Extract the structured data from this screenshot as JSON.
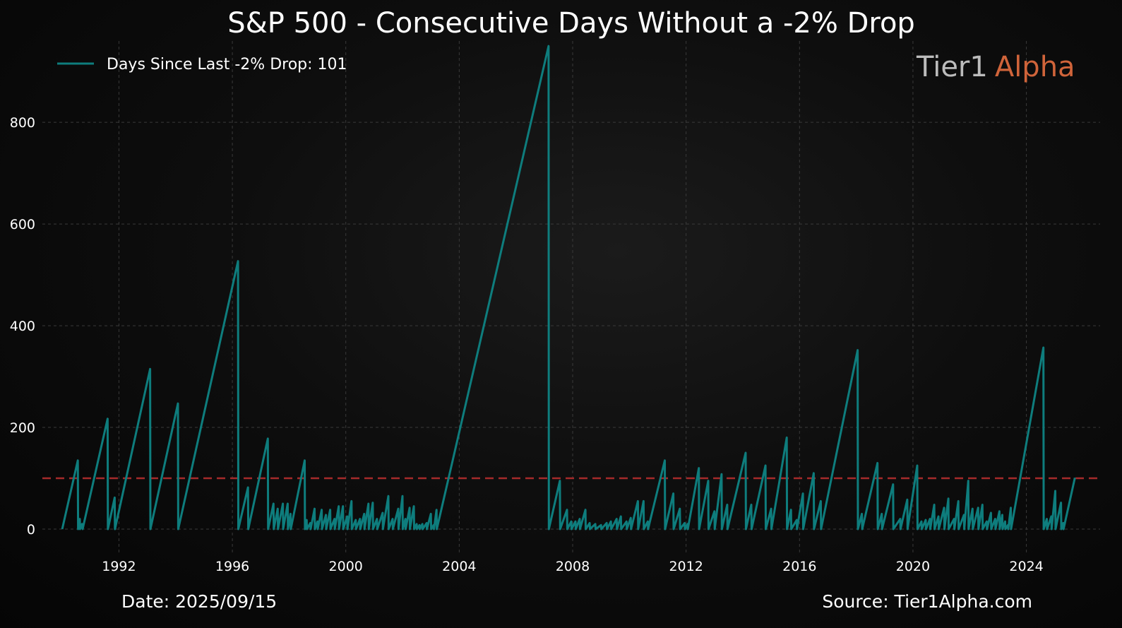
{
  "chart_data": {
    "type": "line",
    "title": "S&P 500 - Consecutive Days Without a -2% Drop",
    "xlabel": "",
    "ylabel": "",
    "xlim": [
      1989.3,
      2026.6
    ],
    "ylim": [
      -50,
      960
    ],
    "x_ticks": [
      1992,
      1996,
      2000,
      2004,
      2008,
      2012,
      2016,
      2020,
      2024
    ],
    "y_ticks": [
      0,
      200,
      400,
      600,
      800
    ],
    "grid": true,
    "legend_position": "top-left",
    "threshold": {
      "y": 100,
      "style": "dashed",
      "color": "#a52a2a"
    },
    "series": [
      {
        "name": "Days Since Last -2% Drop: 101",
        "color": "#0e7d7d",
        "points": [
          [
            1990.0,
            0
          ],
          [
            1990.55,
            135
          ],
          [
            1990.56,
            0
          ],
          [
            1990.62,
            20
          ],
          [
            1990.63,
            0
          ],
          [
            1990.7,
            10
          ],
          [
            1990.72,
            0
          ],
          [
            1991.6,
            217
          ],
          [
            1991.61,
            0
          ],
          [
            1991.85,
            62
          ],
          [
            1991.86,
            0
          ],
          [
            1993.1,
            315
          ],
          [
            1993.11,
            0
          ],
          [
            1994.08,
            247
          ],
          [
            1994.09,
            0
          ],
          [
            1996.2,
            527
          ],
          [
            1996.21,
            0
          ],
          [
            1996.55,
            82
          ],
          [
            1996.56,
            0
          ],
          [
            1997.25,
            178
          ],
          [
            1997.26,
            0
          ],
          [
            1997.45,
            50
          ],
          [
            1997.46,
            0
          ],
          [
            1997.6,
            40
          ],
          [
            1997.61,
            0
          ],
          [
            1997.78,
            50
          ],
          [
            1997.79,
            0
          ],
          [
            1997.95,
            50
          ],
          [
            1997.96,
            0
          ],
          [
            1998.05,
            30
          ],
          [
            1998.06,
            0
          ],
          [
            1998.55,
            135
          ],
          [
            1998.56,
            0
          ],
          [
            1998.62,
            18
          ],
          [
            1998.63,
            0
          ],
          [
            1998.75,
            12
          ],
          [
            1998.76,
            0
          ],
          [
            1998.9,
            40
          ],
          [
            1998.91,
            0
          ],
          [
            1999.0,
            15
          ],
          [
            1999.01,
            0
          ],
          [
            1999.15,
            38
          ],
          [
            1999.16,
            0
          ],
          [
            1999.3,
            28
          ],
          [
            1999.31,
            0
          ],
          [
            1999.45,
            38
          ],
          [
            1999.46,
            0
          ],
          [
            1999.6,
            20
          ],
          [
            1999.61,
            0
          ],
          [
            1999.75,
            45
          ],
          [
            1999.76,
            0
          ],
          [
            1999.9,
            45
          ],
          [
            1999.91,
            0
          ],
          [
            2000.05,
            25
          ],
          [
            2000.06,
            0
          ],
          [
            2000.2,
            55
          ],
          [
            2000.21,
            0
          ],
          [
            2000.35,
            18
          ],
          [
            2000.36,
            0
          ],
          [
            2000.5,
            20
          ],
          [
            2000.51,
            0
          ],
          [
            2000.65,
            30
          ],
          [
            2000.66,
            0
          ],
          [
            2000.8,
            50
          ],
          [
            2000.81,
            0
          ],
          [
            2000.95,
            52
          ],
          [
            2000.96,
            0
          ],
          [
            2001.1,
            20
          ],
          [
            2001.11,
            0
          ],
          [
            2001.3,
            32
          ],
          [
            2001.31,
            0
          ],
          [
            2001.5,
            65
          ],
          [
            2001.51,
            0
          ],
          [
            2001.65,
            20
          ],
          [
            2001.66,
            0
          ],
          [
            2001.85,
            40
          ],
          [
            2001.86,
            0
          ],
          [
            2002.0,
            65
          ],
          [
            2002.01,
            0
          ],
          [
            2002.1,
            20
          ],
          [
            2002.11,
            0
          ],
          [
            2002.25,
            42
          ],
          [
            2002.26,
            0
          ],
          [
            2002.4,
            45
          ],
          [
            2002.41,
            0
          ],
          [
            2002.5,
            10
          ],
          [
            2002.51,
            0
          ],
          [
            2002.6,
            8
          ],
          [
            2002.61,
            0
          ],
          [
            2002.7,
            10
          ],
          [
            2002.71,
            0
          ],
          [
            2002.85,
            12
          ],
          [
            2002.86,
            0
          ],
          [
            2003.0,
            30
          ],
          [
            2003.01,
            0
          ],
          [
            2003.1,
            8
          ],
          [
            2003.11,
            0
          ],
          [
            2003.2,
            38
          ],
          [
            2003.21,
            0
          ],
          [
            2007.15,
            950
          ],
          [
            2007.16,
            0
          ],
          [
            2007.55,
            95
          ],
          [
            2007.56,
            0
          ],
          [
            2007.8,
            38
          ],
          [
            2007.81,
            0
          ],
          [
            2007.95,
            15
          ],
          [
            2007.96,
            0
          ],
          [
            2008.1,
            15
          ],
          [
            2008.11,
            0
          ],
          [
            2008.25,
            20
          ],
          [
            2008.26,
            0
          ],
          [
            2008.45,
            38
          ],
          [
            2008.46,
            0
          ],
          [
            2008.6,
            12
          ],
          [
            2008.61,
            0
          ],
          [
            2008.8,
            10
          ],
          [
            2008.81,
            0
          ],
          [
            2009.0,
            8
          ],
          [
            2009.01,
            0
          ],
          [
            2009.2,
            12
          ],
          [
            2009.21,
            0
          ],
          [
            2009.35,
            15
          ],
          [
            2009.36,
            0
          ],
          [
            2009.55,
            20
          ],
          [
            2009.56,
            0
          ],
          [
            2009.7,
            25
          ],
          [
            2009.71,
            0
          ],
          [
            2009.9,
            15
          ],
          [
            2009.91,
            0
          ],
          [
            2010.05,
            22
          ],
          [
            2010.06,
            0
          ],
          [
            2010.3,
            55
          ],
          [
            2010.31,
            0
          ],
          [
            2010.5,
            55
          ],
          [
            2010.51,
            0
          ],
          [
            2010.65,
            15
          ],
          [
            2010.66,
            0
          ],
          [
            2011.25,
            135
          ],
          [
            2011.26,
            0
          ],
          [
            2011.55,
            70
          ],
          [
            2011.56,
            0
          ],
          [
            2011.78,
            40
          ],
          [
            2011.79,
            0
          ],
          [
            2011.95,
            12
          ],
          [
            2011.96,
            0
          ],
          [
            2012.05,
            10
          ],
          [
            2012.06,
            0
          ],
          [
            2012.45,
            120
          ],
          [
            2012.46,
            0
          ],
          [
            2012.78,
            95
          ],
          [
            2012.79,
            0
          ],
          [
            2013.0,
            35
          ],
          [
            2013.01,
            0
          ],
          [
            2013.25,
            108
          ],
          [
            2013.26,
            0
          ],
          [
            2013.45,
            48
          ],
          [
            2013.46,
            0
          ],
          [
            2014.1,
            150
          ],
          [
            2014.11,
            0
          ],
          [
            2014.3,
            48
          ],
          [
            2014.31,
            0
          ],
          [
            2014.8,
            125
          ],
          [
            2014.81,
            0
          ],
          [
            2015.0,
            40
          ],
          [
            2015.01,
            0
          ],
          [
            2015.55,
            180
          ],
          [
            2015.56,
            0
          ],
          [
            2015.7,
            38
          ],
          [
            2015.71,
            0
          ],
          [
            2015.9,
            18
          ],
          [
            2015.91,
            0
          ],
          [
            2016.12,
            70
          ],
          [
            2016.13,
            0
          ],
          [
            2016.5,
            110
          ],
          [
            2016.51,
            0
          ],
          [
            2016.75,
            55
          ],
          [
            2016.76,
            0
          ],
          [
            2018.05,
            352
          ],
          [
            2018.06,
            0
          ],
          [
            2018.2,
            30
          ],
          [
            2018.21,
            0
          ],
          [
            2018.75,
            130
          ],
          [
            2018.76,
            0
          ],
          [
            2018.9,
            30
          ],
          [
            2018.91,
            0
          ],
          [
            2019.3,
            88
          ],
          [
            2019.31,
            0
          ],
          [
            2019.55,
            20
          ],
          [
            2019.56,
            0
          ],
          [
            2019.8,
            58
          ],
          [
            2019.81,
            0
          ],
          [
            2020.15,
            125
          ],
          [
            2020.16,
            0
          ],
          [
            2020.3,
            15
          ],
          [
            2020.31,
            0
          ],
          [
            2020.45,
            18
          ],
          [
            2020.46,
            0
          ],
          [
            2020.6,
            20
          ],
          [
            2020.61,
            0
          ],
          [
            2020.75,
            48
          ],
          [
            2020.76,
            0
          ],
          [
            2020.9,
            25
          ],
          [
            2020.91,
            0
          ],
          [
            2021.1,
            42
          ],
          [
            2021.11,
            0
          ],
          [
            2021.25,
            60
          ],
          [
            2021.26,
            0
          ],
          [
            2021.45,
            20
          ],
          [
            2021.46,
            0
          ],
          [
            2021.6,
            55
          ],
          [
            2021.61,
            0
          ],
          [
            2021.8,
            28
          ],
          [
            2021.81,
            0
          ],
          [
            2021.95,
            95
          ],
          [
            2021.96,
            0
          ],
          [
            2022.1,
            40
          ],
          [
            2022.11,
            0
          ],
          [
            2022.3,
            42
          ],
          [
            2022.31,
            0
          ],
          [
            2022.45,
            48
          ],
          [
            2022.46,
            0
          ],
          [
            2022.6,
            15
          ],
          [
            2022.61,
            0
          ],
          [
            2022.75,
            32
          ],
          [
            2022.76,
            0
          ],
          [
            2022.9,
            20
          ],
          [
            2022.91,
            0
          ],
          [
            2023.05,
            35
          ],
          [
            2023.06,
            0
          ],
          [
            2023.15,
            28
          ],
          [
            2023.16,
            0
          ],
          [
            2023.25,
            15
          ],
          [
            2023.26,
            0
          ],
          [
            2023.35,
            8
          ],
          [
            2023.36,
            0
          ],
          [
            2023.45,
            42
          ],
          [
            2023.46,
            0
          ],
          [
            2024.6,
            357
          ],
          [
            2024.61,
            0
          ],
          [
            2024.72,
            20
          ],
          [
            2024.73,
            0
          ],
          [
            2024.88,
            25
          ],
          [
            2024.89,
            0
          ],
          [
            2025.02,
            75
          ],
          [
            2025.03,
            0
          ],
          [
            2025.22,
            52
          ],
          [
            2025.23,
            0
          ],
          [
            2025.3,
            12
          ],
          [
            2025.31,
            0
          ],
          [
            2025.71,
            101
          ]
        ]
      }
    ]
  },
  "brand": {
    "part1": "Tier1",
    "part2": "Alpha"
  },
  "footer": {
    "date_label": "Date: 2025/09/15",
    "source_label": "Source: Tier1Alpha.com"
  },
  "colors": {
    "line": "#0e7d7d",
    "threshold": "#a52a2a",
    "brand_accent": "#d0643a",
    "grid": "#3a3a3a"
  }
}
